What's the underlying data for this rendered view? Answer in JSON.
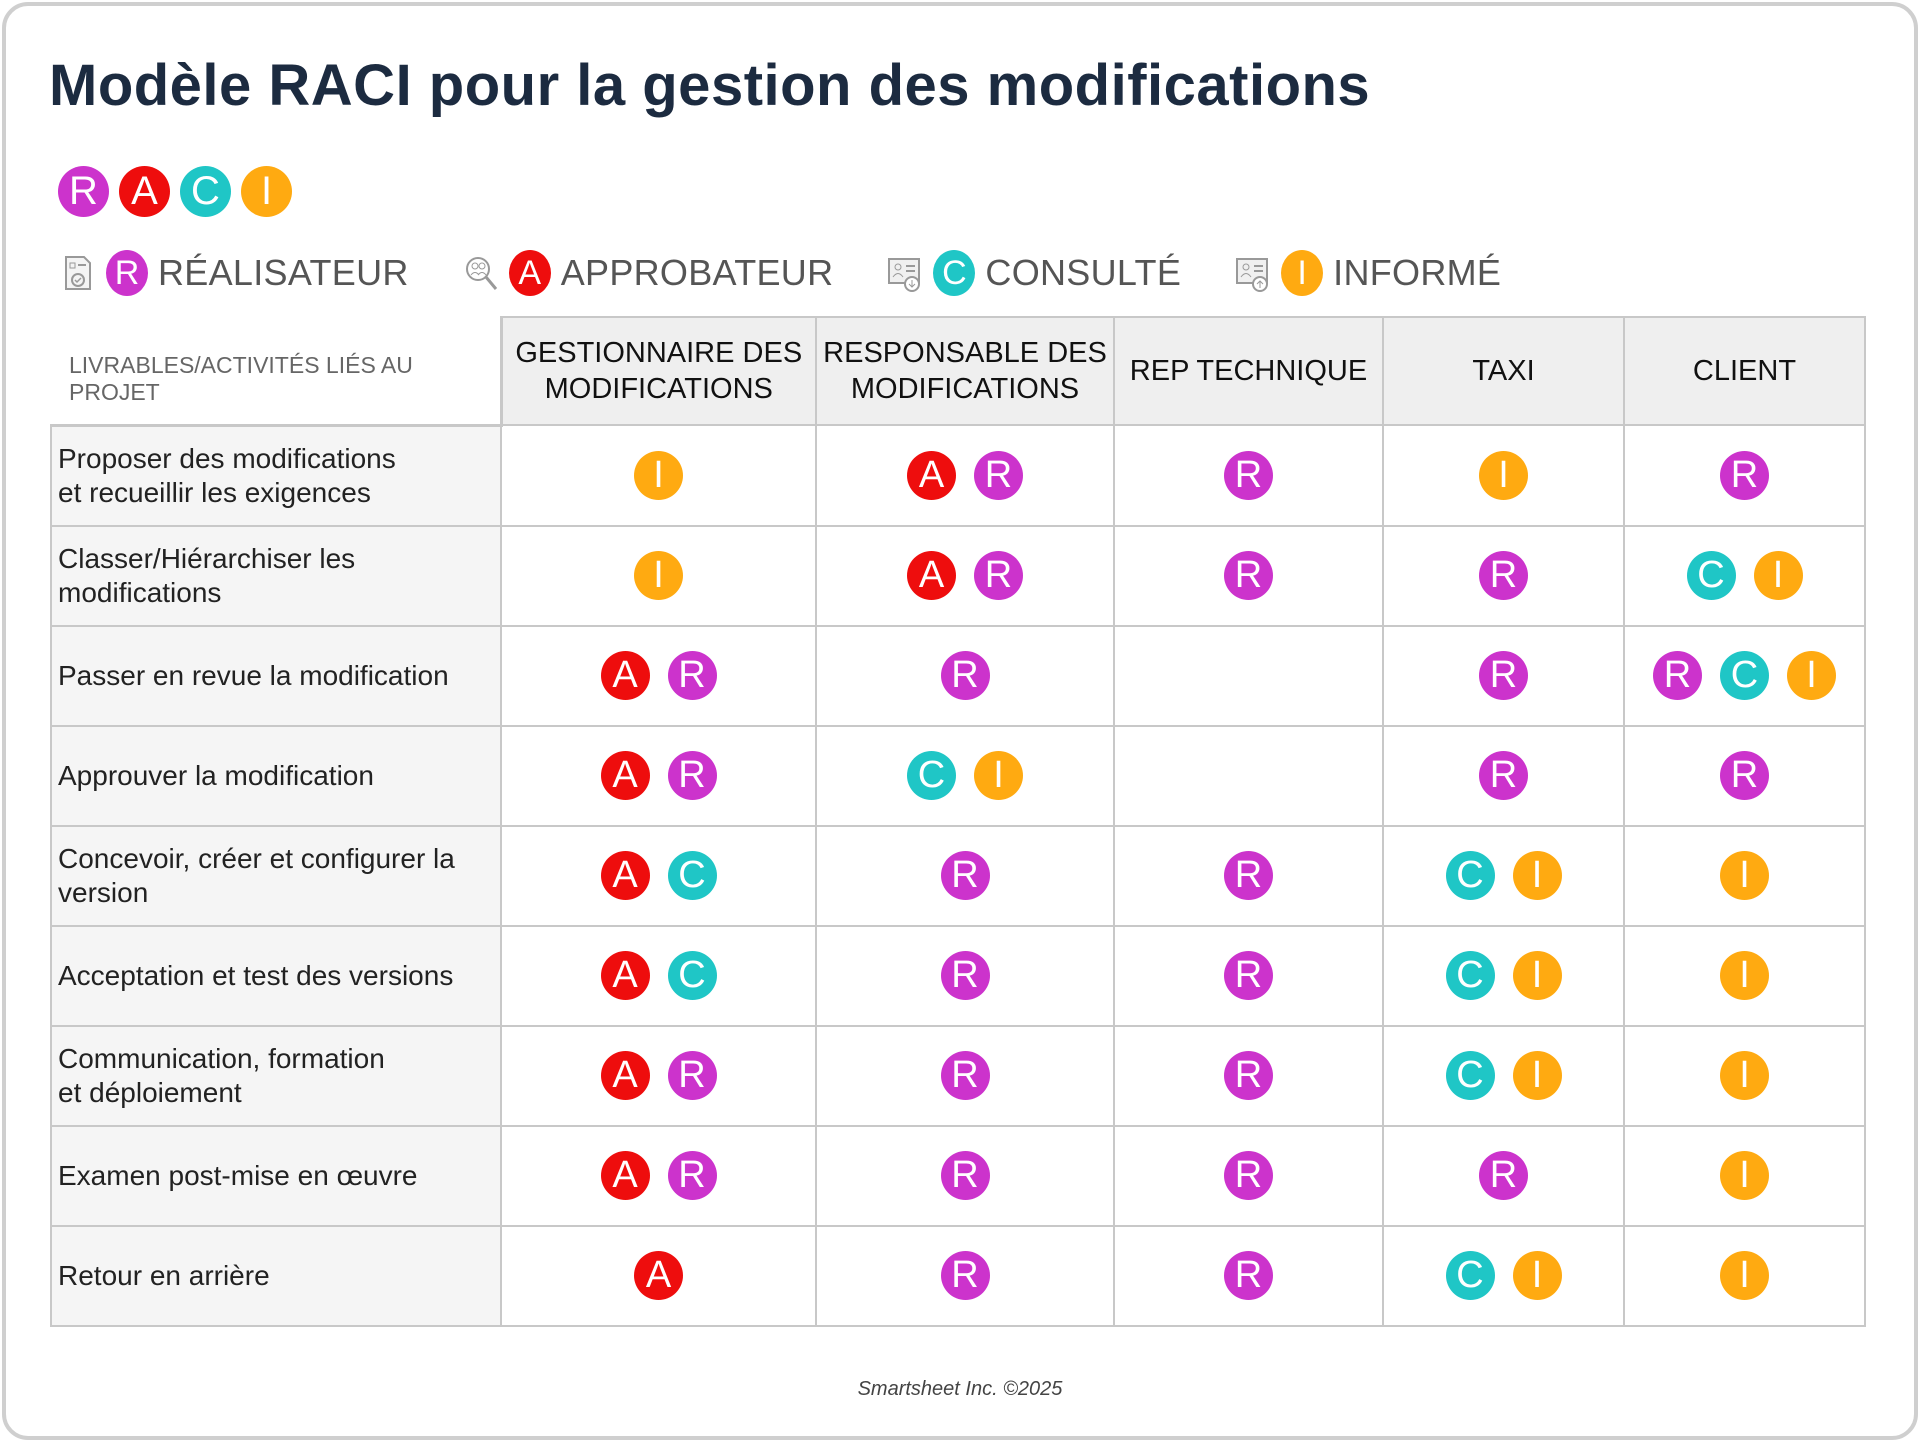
{
  "title": "Modèle RACI pour la gestion des modifications",
  "raci_letters": [
    "R",
    "A",
    "C",
    "I"
  ],
  "colors": {
    "R": "#cc33cc",
    "A": "#ee0d0d",
    "C": "#1fc6c6",
    "I": "#ffaa11",
    "title": "#1c2b40"
  },
  "legend": [
    {
      "icon": "task-document-icon",
      "letter": "R",
      "label": "RÉALISATEUR"
    },
    {
      "icon": "magnify-people-icon",
      "letter": "A",
      "label": "APPROBATEUR"
    },
    {
      "icon": "contact-card-download-icon",
      "letter": "C",
      "label": "CONSULTÉ"
    },
    {
      "icon": "contact-card-upload-icon",
      "letter": "I",
      "label": "INFORMÉ"
    }
  ],
  "table": {
    "corner_label": "LIVRABLES/ACTIVITÉS LIÉS AU PROJET",
    "columns": [
      "GESTIONNAIRE DES MODIFICATIONS",
      "RESPONSABLE DES MODIFICATIONS",
      "REP TECHNIQUE",
      "TAXI",
      "CLIENT"
    ],
    "rows": [
      {
        "activity": "Proposer des modifications\net recueillir les exigences",
        "cells": [
          [
            "I"
          ],
          [
            "A",
            "R"
          ],
          [
            "R"
          ],
          [
            "I"
          ],
          [
            "R"
          ]
        ]
      },
      {
        "activity": "Classer/Hiérarchiser les\nmodifications",
        "cells": [
          [
            "I"
          ],
          [
            "A",
            "R"
          ],
          [
            "R"
          ],
          [
            "R"
          ],
          [
            "C",
            "I"
          ]
        ]
      },
      {
        "activity": "Passer en revue la modification",
        "cells": [
          [
            "A",
            "R"
          ],
          [
            "R"
          ],
          [],
          [
            "R"
          ],
          [
            "R",
            "C",
            "I"
          ]
        ]
      },
      {
        "activity": "Approuver la modification",
        "cells": [
          [
            "A",
            "R"
          ],
          [
            "C",
            "I"
          ],
          [],
          [
            "R"
          ],
          [
            "R"
          ]
        ]
      },
      {
        "activity": "Concevoir, créer et configurer la\nversion",
        "cells": [
          [
            "A",
            "C"
          ],
          [
            "R"
          ],
          [
            "R"
          ],
          [
            "C",
            "I"
          ],
          [
            "I"
          ]
        ]
      },
      {
        "activity": "Acceptation et test des versions",
        "cells": [
          [
            "A",
            "C"
          ],
          [
            "R"
          ],
          [
            "R"
          ],
          [
            "C",
            "I"
          ],
          [
            "I"
          ]
        ]
      },
      {
        "activity": "Communication, formation\net déploiement",
        "cells": [
          [
            "A",
            "R"
          ],
          [
            "R"
          ],
          [
            "R"
          ],
          [
            "C",
            "I"
          ],
          [
            "I"
          ]
        ]
      },
      {
        "activity": "Examen post-mise en œuvre",
        "cells": [
          [
            "A",
            "R"
          ],
          [
            "R"
          ],
          [
            "R"
          ],
          [
            "R"
          ],
          [
            "I"
          ]
        ]
      },
      {
        "activity": "Retour en arrière",
        "cells": [
          [
            "A"
          ],
          [
            "R"
          ],
          [
            "R"
          ],
          [
            "C",
            "I"
          ],
          [
            "I"
          ]
        ]
      }
    ]
  },
  "footer": "Smartsheet Inc. ©2025"
}
